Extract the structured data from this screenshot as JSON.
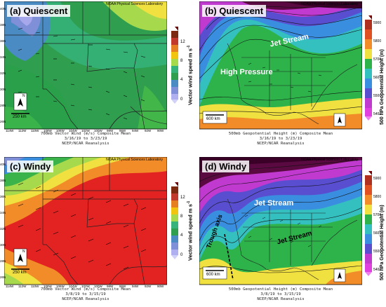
{
  "panels": {
    "a": {
      "title": "(a) Quiescent",
      "credit": "NOAA Physical Sciences Laboratory",
      "caption1": "700mb Vector Wind (m/s) Composite Mean",
      "caption2": "3/16/19  to 3/23/19",
      "caption3": "NCEP/NCAR Reanalysis",
      "scale": "250 km",
      "north": "N"
    },
    "b": {
      "title": "(b) Quiescent",
      "credit": "NOAA Physical Sciences Laboratory",
      "caption1": "500mb Geopotential Height (m) Composite Mean",
      "caption2": "3/16/19  to 3/23/19",
      "caption3": "NCEP/NCAR Reanalysis",
      "scale": "600 km",
      "north": "N",
      "annotations": [
        "Jet Stream",
        "High Pressure"
      ]
    },
    "c": {
      "title": "(c) Windy",
      "credit": "NOAA Physical Sciences Laboratory",
      "caption1": "700mb Vector Wind (m/s) Composite Mean",
      "caption2": "3/8/19  to 3/15/19",
      "caption3": "NCEP/NCAR Reanalysis",
      "scale": "250 km",
      "north": "N"
    },
    "d": {
      "title": "(d) Windy",
      "credit": "NOAA Physical Sciences Laboratory",
      "caption1": "500mb Geopotential Height (m) Composite Mean",
      "caption2": "3/8/19  to 3/15/19",
      "caption3": "NCEP/NCAR Reanalysis",
      "scale": "600 km",
      "north": "N",
      "annotations": [
        "Jet Stream",
        "Jet Stream",
        "Trough axis"
      ]
    }
  },
  "wind_colorbar": {
    "label": "Vector wind speed m s",
    "label_sup": "-1",
    "ticks": [
      "12",
      "8",
      "4",
      "0"
    ]
  },
  "height_colorbar": {
    "label": "500 hPa Geopotential Height (m)",
    "ticks": [
      "5900",
      "5800",
      "5700",
      "5600",
      "5500",
      "5400"
    ]
  },
  "lat_labels": [
    "40N",
    "38N",
    "36N",
    "34N",
    "32N",
    "30N",
    "28N",
    "26N"
  ],
  "lon_labels": [
    "114W",
    "112W",
    "110W",
    "108W",
    "106W",
    "104W",
    "102W",
    "100W",
    "98W",
    "96W",
    "94W",
    "92W",
    "90W"
  ]
}
